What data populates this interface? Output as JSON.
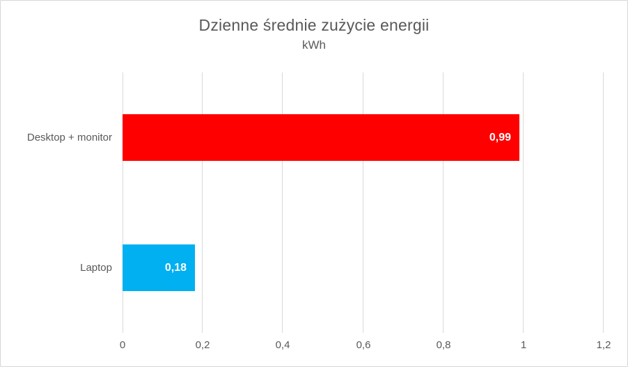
{
  "chart_data": {
    "type": "bar",
    "orientation": "horizontal",
    "title": "Dzienne średnie zużycie energii",
    "subtitle": "kWh",
    "categories": [
      "Desktop + monitor",
      "Laptop"
    ],
    "values": [
      0.99,
      0.18
    ],
    "value_labels": [
      "0,99",
      "0,18"
    ],
    "bar_colors": [
      "#FF0000",
      "#00B0F0"
    ],
    "value_label_color": "#FFFFFF",
    "xlim": [
      0,
      1.2
    ],
    "xticks": [
      {
        "value": 0,
        "label": "0"
      },
      {
        "value": 0.2,
        "label": "0,2"
      },
      {
        "value": 0.4,
        "label": "0,4"
      },
      {
        "value": 0.6,
        "label": "0,6"
      },
      {
        "value": 0.8,
        "label": "0,8"
      },
      {
        "value": 1,
        "label": "1"
      },
      {
        "value": 1.2,
        "label": "1,2"
      }
    ],
    "grid": true,
    "gridline_color": "#D9D9D9",
    "text_color": "#595959",
    "legend": "none"
  }
}
